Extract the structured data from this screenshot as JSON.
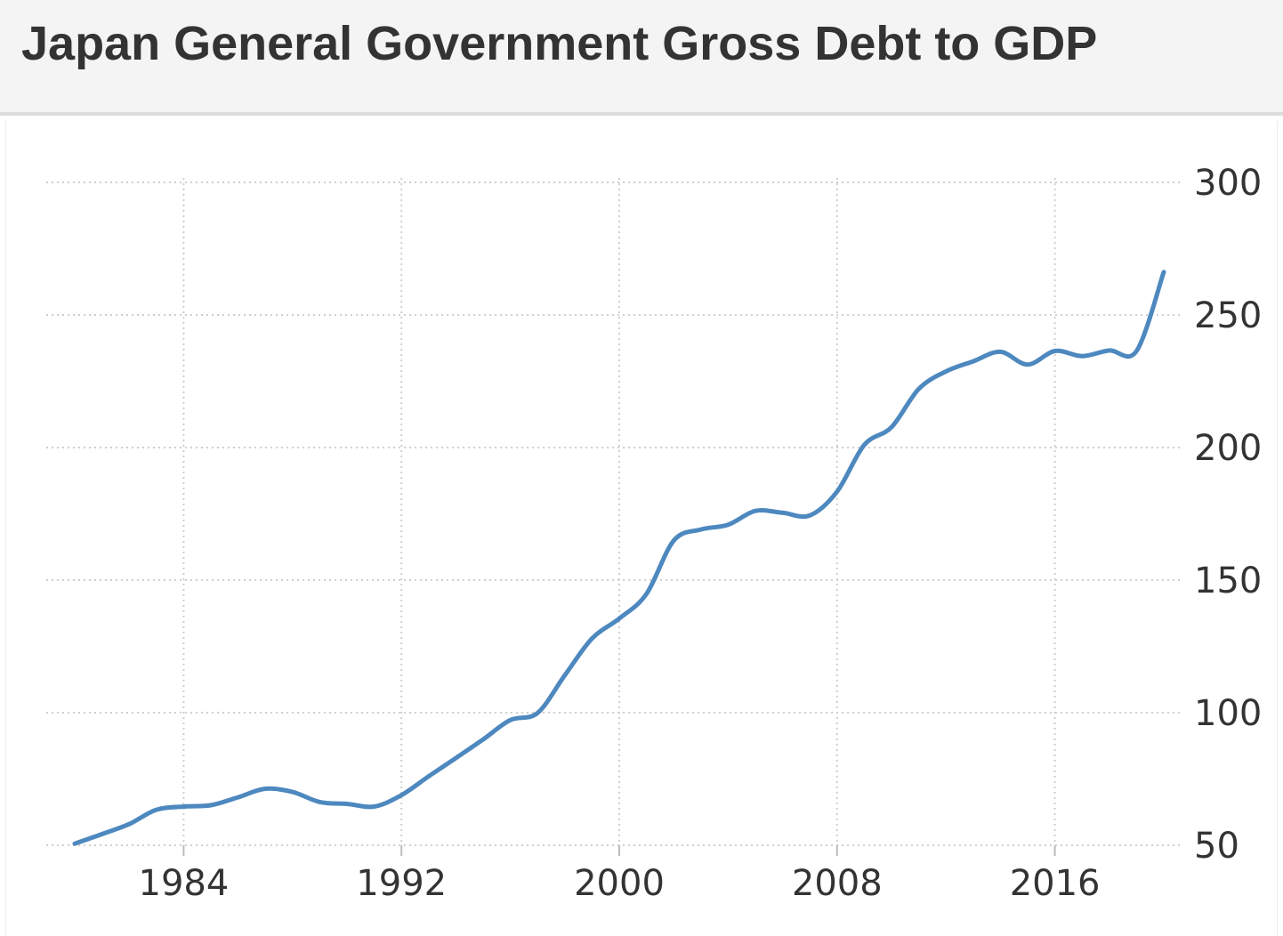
{
  "header": {
    "title": "Japan General Government Gross Debt to GDP"
  },
  "chart_data": {
    "type": "line",
    "title": "Japan General Government Gross Debt to GDP",
    "xlabel": "",
    "ylabel": "",
    "x": [
      1980,
      1981,
      1982,
      1983,
      1984,
      1985,
      1986,
      1987,
      1988,
      1989,
      1990,
      1991,
      1992,
      1993,
      1994,
      1995,
      1996,
      1997,
      1998,
      1999,
      2000,
      2001,
      2002,
      2003,
      2004,
      2005,
      2006,
      2007,
      2008,
      2009,
      2010,
      2011,
      2012,
      2013,
      2014,
      2015,
      2016,
      2017,
      2018,
      2019,
      2020
    ],
    "series": [
      {
        "values": [
          50.6,
          54.2,
          58.0,
          63.4,
          64.6,
          65.1,
          68.1,
          71.3,
          70.1,
          66.3,
          65.6,
          64.6,
          68.9,
          76.0,
          82.9,
          89.9,
          97.2,
          99.9,
          114.1,
          128.0,
          135.5,
          144.8,
          164.9,
          169.1,
          170.9,
          176.1,
          175.4,
          174.4,
          183.4,
          201.0,
          207.7,
          222.1,
          228.7,
          232.5,
          236.1,
          231.3,
          236.4,
          234.5,
          236.6,
          236.4,
          266.2
        ],
        "color": "#4d88bf"
      }
    ],
    "xlim": [
      1980,
      2020
    ],
    "ylim": [
      50,
      300
    ],
    "x_ticks": [
      "1984",
      "1992",
      "2000",
      "2008",
      "2016"
    ],
    "y_ticks": [
      "300",
      "250",
      "200",
      "150",
      "100",
      "50"
    ],
    "y_axis_position": "right",
    "grid": true,
    "legend": "none"
  }
}
